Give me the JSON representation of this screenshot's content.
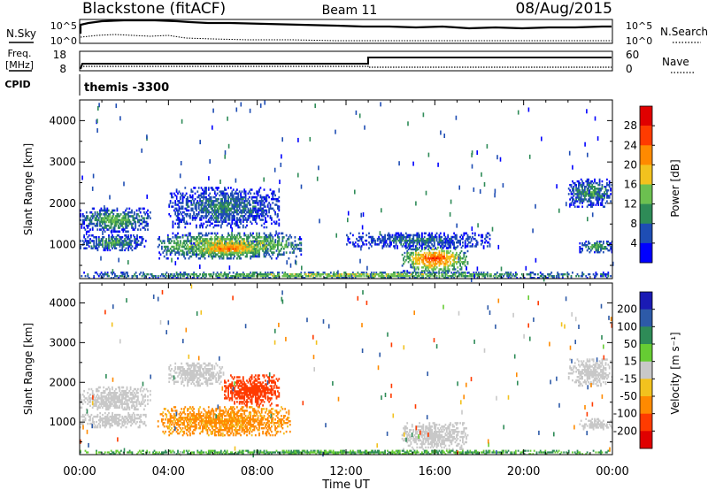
{
  "header": {
    "title": "Blackstone (fitACF)",
    "beam": "Beam 11",
    "date": "08/Aug/2015"
  },
  "noise_panel": {
    "left_label": "N.Sky",
    "right_label": "N.Search",
    "left_ticks": [
      "10^5",
      "10^0"
    ],
    "right_ticks": [
      "10^5",
      "10^0"
    ]
  },
  "freq_panel": {
    "left_label_line1": "Freq.",
    "left_label_line2": "[MHz]",
    "left_ticks": [
      "18",
      "8"
    ],
    "right_label": "Nave",
    "right_ticks": [
      "60",
      "0"
    ]
  },
  "cpid": {
    "label": "CPID",
    "value": "themis -3300"
  },
  "chart_data": [
    {
      "type": "heatmap",
      "name": "power",
      "ylabel": "Slant Range [km]",
      "ylim": [
        180,
        4500
      ],
      "yticks": [
        "1000",
        "2000",
        "3000",
        "4000"
      ],
      "ytick_values": [
        1000,
        2000,
        3000,
        4000
      ],
      "colorbar": {
        "label": "Power [dB]",
        "ticks": [
          "4",
          "8",
          "12",
          "16",
          "20",
          "24",
          "28"
        ],
        "colors": [
          "#0000ff",
          "#1e4db4",
          "#2e8b57",
          "#6cc050",
          "#f2c21e",
          "#ff8a00",
          "#ff3b00",
          "#e00000"
        ]
      },
      "echo_regions": [
        {
          "t0": 0.0,
          "t1": 3.2,
          "r0": 1300,
          "r1": 1900,
          "v": 14
        },
        {
          "t0": 0.0,
          "t1": 3.0,
          "r0": 850,
          "r1": 1250,
          "v": 12
        },
        {
          "t0": 3.5,
          "t1": 10.0,
          "r0": 650,
          "r1": 1300,
          "v": 22
        },
        {
          "t0": 5.0,
          "t1": 8.5,
          "r0": 700,
          "r1": 1100,
          "v": 26
        },
        {
          "t0": 4.0,
          "t1": 9.0,
          "r0": 1400,
          "r1": 2400,
          "v": 10
        },
        {
          "t0": 14.5,
          "t1": 17.5,
          "r0": 300,
          "r1": 1000,
          "v": 28
        },
        {
          "t0": 12.0,
          "t1": 18.5,
          "r0": 900,
          "r1": 1300,
          "v": 9
        },
        {
          "t0": 22.0,
          "t1": 24.0,
          "r0": 1900,
          "r1": 2600,
          "v": 12
        },
        {
          "t0": 22.5,
          "t1": 24.0,
          "r0": 800,
          "r1": 1100,
          "v": 14
        },
        {
          "t0": 0.0,
          "t1": 24.0,
          "r0": 180,
          "r1": 350,
          "v": 18
        }
      ]
    },
    {
      "type": "heatmap",
      "name": "velocity",
      "ylabel": "Slant Range [km]",
      "ylim": [
        180,
        4500
      ],
      "yticks": [
        "1000",
        "2000",
        "3000",
        "4000"
      ],
      "ytick_values": [
        1000,
        2000,
        3000,
        4000
      ],
      "xlabel": "Time UT",
      "xticks": [
        "00:00",
        "04:00",
        "08:00",
        "12:00",
        "16:00",
        "20:00",
        "00:00"
      ],
      "xtick_values": [
        0,
        4,
        8,
        12,
        16,
        20,
        24
      ],
      "colorbar": {
        "label": "Velocity [m s⁻¹]",
        "ticks": [
          "200",
          "100",
          "50",
          "15",
          "-15",
          "-50",
          "-100",
          "-200"
        ],
        "colors": [
          "#1a1ab4",
          "#2d5aa8",
          "#2e8b57",
          "#66cc33",
          "#c8c8c8",
          "#f2c21e",
          "#ff8a00",
          "#ff3b00",
          "#e00000"
        ]
      },
      "echo_regions": [
        {
          "t0": 0.0,
          "t1": 3.2,
          "r0": 1300,
          "r1": 1900,
          "v": 0
        },
        {
          "t0": 0.0,
          "t1": 3.0,
          "r0": 850,
          "r1": 1250,
          "v": 0
        },
        {
          "t0": 3.5,
          "t1": 9.5,
          "r0": 650,
          "r1": 1400,
          "v": -60
        },
        {
          "t0": 6.5,
          "t1": 9.0,
          "r0": 1400,
          "r1": 2200,
          "v": -120
        },
        {
          "t0": 4.0,
          "t1": 6.5,
          "r0": 1900,
          "r1": 2500,
          "v": 0
        },
        {
          "t0": 14.5,
          "t1": 17.5,
          "r0": 300,
          "r1": 1000,
          "v": 0
        },
        {
          "t0": 22.0,
          "t1": 24.0,
          "r0": 1900,
          "r1": 2600,
          "v": 0
        },
        {
          "t0": 22.5,
          "t1": 24.0,
          "r0": 800,
          "r1": 1100,
          "v": 0
        },
        {
          "t0": 0.0,
          "t1": 24.0,
          "r0": 180,
          "r1": 300,
          "v": 30
        }
      ]
    }
  ]
}
